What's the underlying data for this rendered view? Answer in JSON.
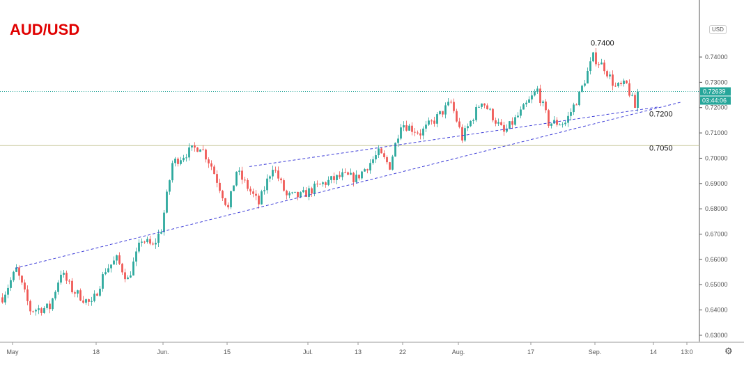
{
  "title": "AUD/USD",
  "currency_badge": "USD",
  "settings_icon": "gear-icon",
  "chart_data": {
    "type": "candlestick",
    "title": "AUD/USD",
    "ylim": [
      0.625,
      0.7525
    ],
    "bar_count": 229,
    "y_ticks": [
      "0.63000",
      "0.64000",
      "0.65000",
      "0.66000",
      "0.67000",
      "0.68000",
      "0.69000",
      "0.70000",
      "0.71000",
      "0.72000",
      "0.73000",
      "0.74000"
    ],
    "y_tick_values": [
      0.63,
      0.64,
      0.65,
      0.66,
      0.67,
      0.68,
      0.69,
      0.7,
      0.71,
      0.72,
      0.73,
      0.74
    ],
    "x_ticks": [
      {
        "label": "May",
        "bar": 4
      },
      {
        "label": "18",
        "bar": 34
      },
      {
        "label": "Jun.",
        "bar": 58
      },
      {
        "label": "15",
        "bar": 81
      },
      {
        "label": "Jul.",
        "bar": 110
      },
      {
        "label": "13",
        "bar": 128
      },
      {
        "label": "22",
        "bar": 144
      },
      {
        "label": "Aug.",
        "bar": 164
      },
      {
        "label": "17",
        "bar": 190
      },
      {
        "label": "Sep.",
        "bar": 213
      },
      {
        "label": "14",
        "bar": 234
      },
      {
        "label": "13:0",
        "bar": 246
      }
    ],
    "price_path": [
      [
        0,
        0.645
      ],
      [
        5,
        0.656
      ],
      [
        10,
        0.64
      ],
      [
        17,
        0.641
      ],
      [
        21,
        0.655
      ],
      [
        25,
        0.648
      ],
      [
        32,
        0.642
      ],
      [
        37,
        0.656
      ],
      [
        41,
        0.66
      ],
      [
        45,
        0.652
      ],
      [
        50,
        0.668
      ],
      [
        54,
        0.665
      ],
      [
        57,
        0.672
      ],
      [
        61,
        0.698
      ],
      [
        66,
        0.702
      ],
      [
        71,
        0.705
      ],
      [
        75,
        0.697
      ],
      [
        81,
        0.68
      ],
      [
        84,
        0.695
      ],
      [
        92,
        0.682
      ],
      [
        97,
        0.697
      ],
      [
        102,
        0.685
      ],
      [
        107,
        0.685
      ],
      [
        115,
        0.69
      ],
      [
        122,
        0.693
      ],
      [
        127,
        0.692
      ],
      [
        135,
        0.702
      ],
      [
        139,
        0.697
      ],
      [
        143,
        0.714
      ],
      [
        150,
        0.71
      ],
      [
        155,
        0.715
      ],
      [
        161,
        0.722
      ],
      [
        165,
        0.708
      ],
      [
        172,
        0.723
      ],
      [
        180,
        0.71
      ],
      [
        186,
        0.718
      ],
      [
        192,
        0.727
      ],
      [
        196,
        0.714
      ],
      [
        202,
        0.714
      ],
      [
        207,
        0.725
      ],
      [
        212,
        0.74
      ],
      [
        216,
        0.736
      ],
      [
        220,
        0.728
      ],
      [
        224,
        0.729
      ],
      [
        227,
        0.72
      ],
      [
        228,
        0.7264
      ]
    ],
    "last_price": "0.72639",
    "countdown": "03:44:06",
    "horizontal_levels": [
      {
        "value": 0.72639,
        "color": "#26a69a",
        "style": "dotted"
      },
      {
        "value": 0.705,
        "color": "#c8c89a",
        "style": "solid"
      }
    ],
    "trendlines": [
      {
        "from": [
          5,
          0.6565
        ],
        "to": [
          244,
          0.7222
        ],
        "color": "#3f3fd8"
      },
      {
        "from": [
          89,
          0.6967
        ],
        "to": [
          236,
          0.7203
        ],
        "color": "#3f3fd8"
      }
    ],
    "annotations": [
      {
        "text": "0.7400",
        "bar": 212,
        "price": 0.7445
      },
      {
        "text": "0.7200",
        "bar": 233,
        "price": 0.7165
      },
      {
        "text": "0.7050",
        "bar": 233,
        "price": 0.703
      }
    ],
    "colors": {
      "up": "#26a69a",
      "down": "#ef5350",
      "price_tag": "#26a69a",
      "title": "#e00000"
    }
  }
}
